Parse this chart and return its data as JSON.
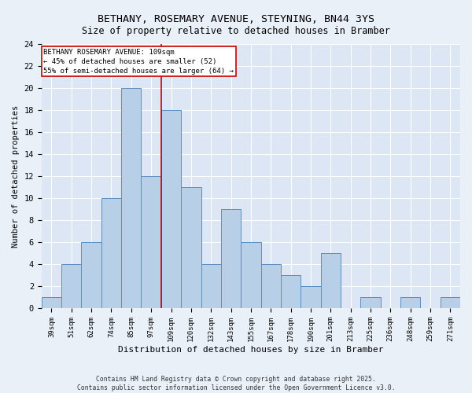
{
  "title": "BETHANY, ROSEMARY AVENUE, STEYNING, BN44 3YS",
  "subtitle": "Size of property relative to detached houses in Bramber",
  "xlabel": "Distribution of detached houses by size in Bramber",
  "ylabel": "Number of detached properties",
  "categories": [
    "39sqm",
    "51sqm",
    "62sqm",
    "74sqm",
    "85sqm",
    "97sqm",
    "109sqm",
    "120sqm",
    "132sqm",
    "143sqm",
    "155sqm",
    "167sqm",
    "178sqm",
    "190sqm",
    "201sqm",
    "213sqm",
    "225sqm",
    "236sqm",
    "248sqm",
    "259sqm",
    "271sqm"
  ],
  "values": [
    1,
    4,
    6,
    10,
    20,
    12,
    18,
    11,
    4,
    9,
    6,
    4,
    3,
    2,
    5,
    0,
    1,
    0,
    1,
    0,
    1
  ],
  "bar_color": "#b8cfe8",
  "bar_edge_color": "#5a8fc2",
  "highlight_line_color": "#cc0000",
  "annotation_text": "BETHANY ROSEMARY AVENUE: 109sqm\n← 45% of detached houses are smaller (52)\n55% of semi-detached houses are larger (64) →",
  "annotation_box_color": "#ffffff",
  "annotation_box_edge_color": "#cc0000",
  "ylim": [
    0,
    24
  ],
  "yticks": [
    0,
    2,
    4,
    6,
    8,
    10,
    12,
    14,
    16,
    18,
    20,
    22,
    24
  ],
  "footer": "Contains HM Land Registry data © Crown copyright and database right 2025.\nContains public sector information licensed under the Open Government Licence v3.0.",
  "bg_color": "#eaf0f8",
  "plot_bg_color": "#dce6f4"
}
